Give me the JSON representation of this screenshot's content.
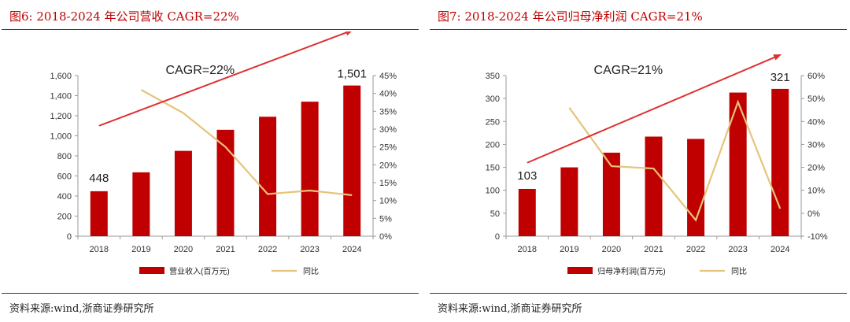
{
  "colors": {
    "accent": "#c00000",
    "bar": "#c00000",
    "line": "#e6c47a",
    "trend_arrow": "#e03030"
  },
  "figures": [
    {
      "title": "图6:   2018-2024 年公司营收 CAGR=22%",
      "source": "资料来源:wind,浙商证券研究所"
    },
    {
      "title": "图7:   2018-2024 年公司归母净利润 CAGR=21%",
      "source": "资料来源:wind,浙商证券研究所"
    }
  ],
  "chart_data": [
    {
      "type": "bar",
      "categories": [
        "2018",
        "2019",
        "2020",
        "2021",
        "2022",
        "2023",
        "2024"
      ],
      "series": [
        {
          "name": "营业收入(百万元)",
          "kind": "bar",
          "axis": "left",
          "values": [
            448,
            636,
            850,
            1060,
            1190,
            1340,
            1501
          ]
        },
        {
          "name": "同比",
          "kind": "line",
          "axis": "right",
          "values": [
            null,
            41,
            34.5,
            25,
            11.8,
            12.8,
            11.5
          ]
        }
      ],
      "left_axis": {
        "min": 0,
        "max": 1600,
        "step": 200,
        "tick_labels": [
          "0",
          "200",
          "400",
          "600",
          "800",
          "1,000",
          "1,200",
          "1,400",
          "1,600"
        ]
      },
      "right_axis": {
        "min": 0,
        "max": 45,
        "step": 5,
        "tick_labels": [
          "0%",
          "5%",
          "10%",
          "15%",
          "20%",
          "25%",
          "30%",
          "35%",
          "40%",
          "45%"
        ]
      },
      "trend_arrow": {
        "from": [
          0,
          1100
        ],
        "to": [
          6,
          2050
        ]
      },
      "annotations": [
        {
          "text": "CAGR=22%"
        },
        {
          "text": "448",
          "at": 0,
          "y": 448
        },
        {
          "text": "1,501",
          "at": 6,
          "y": 1501
        }
      ],
      "legend": [
        "营业收入(百万元)",
        "同比"
      ]
    },
    {
      "type": "bar",
      "categories": [
        "2018",
        "2019",
        "2020",
        "2021",
        "2022",
        "2023",
        "2024"
      ],
      "series": [
        {
          "name": "归母净利润(百万元)",
          "kind": "bar",
          "axis": "left",
          "values": [
            103,
            150,
            182,
            217,
            212,
            313,
            321
          ]
        },
        {
          "name": "同比",
          "kind": "line",
          "axis": "right",
          "values": [
            null,
            46,
            20.5,
            19.5,
            -3,
            48.5,
            2
          ]
        }
      ],
      "left_axis": {
        "min": 0,
        "max": 350,
        "step": 50,
        "tick_labels": [
          "0",
          "50",
          "100",
          "150",
          "200",
          "250",
          "300",
          "350"
        ]
      },
      "right_axis": {
        "min": -10,
        "max": 60,
        "step": 10,
        "tick_labels": [
          "-10%",
          "0%",
          "10%",
          "20%",
          "30%",
          "40%",
          "50%",
          "60%"
        ]
      },
      "trend_arrow": {
        "from": [
          0,
          160
        ],
        "to": [
          6,
          395
        ]
      },
      "annotations": [
        {
          "text": "CAGR=21%"
        },
        {
          "text": "103",
          "at": 0,
          "y": 103
        },
        {
          "text": "321",
          "at": 6,
          "y": 321
        }
      ],
      "legend": [
        "归母净利润(百万元)",
        "同比"
      ]
    }
  ]
}
